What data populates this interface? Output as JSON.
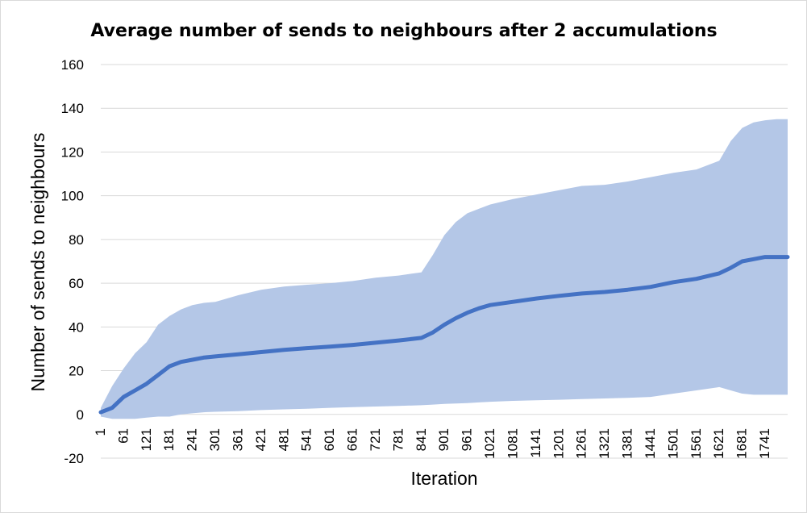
{
  "chart_data": {
    "type": "area",
    "title": "Average number of sends to neighbours after 2 accumulations",
    "xlabel": "Iteration",
    "ylabel": "Number of sends to neighbours",
    "ylim": [
      -20,
      160
    ],
    "y_ticks": [
      -20,
      0,
      20,
      40,
      60,
      80,
      100,
      120,
      140,
      160
    ],
    "x_range": [
      1,
      1800
    ],
    "x_tick_labels": [
      "1",
      "61",
      "121",
      "181",
      "241",
      "301",
      "361",
      "421",
      "481",
      "541",
      "601",
      "661",
      "721",
      "781",
      "841",
      "901",
      "961",
      "1021",
      "1081",
      "1141",
      "1201",
      "1261",
      "1321",
      "1381",
      "1441",
      "1501",
      "1561",
      "1621",
      "1681",
      "1741"
    ],
    "grid": true,
    "legend": "none",
    "colors": {
      "band": "#b4c7e7",
      "line": "#4472c4",
      "grid": "#d9d9d9"
    },
    "x": [
      1,
      31,
      61,
      91,
      121,
      151,
      181,
      211,
      241,
      271,
      301,
      361,
      421,
      481,
      541,
      601,
      661,
      721,
      781,
      841,
      871,
      901,
      931,
      961,
      991,
      1021,
      1081,
      1141,
      1201,
      1261,
      1321,
      1381,
      1441,
      1501,
      1561,
      1621,
      1651,
      1681,
      1711,
      1741,
      1771,
      1800
    ],
    "series": [
      {
        "values": [
          1,
          3,
          8,
          11,
          14,
          18,
          22,
          24,
          25,
          26,
          26.5,
          27.5,
          28.5,
          29.5,
          30.3,
          31,
          31.8,
          32.8,
          33.8,
          35,
          37.5,
          41,
          44,
          46.5,
          48.5,
          50,
          51.5,
          53,
          54.2,
          55.3,
          56,
          57,
          58.3,
          60.5,
          62,
          64.5,
          67,
          70,
          71,
          72,
          72,
          72
        ]
      },
      {
        "values": [
          3,
          13,
          21,
          28,
          33,
          41,
          45,
          48,
          50,
          51,
          51.5,
          54.5,
          57,
          58.5,
          59.3,
          60,
          61,
          62.5,
          63.5,
          65,
          73,
          82,
          88,
          92,
          94,
          96,
          98.5,
          100.5,
          102.5,
          104.5,
          105,
          106.5,
          108.5,
          110.5,
          112,
          116,
          125,
          131,
          133.5,
          134.5,
          135,
          135
        ]
      },
      {
        "values": [
          -1,
          -2,
          -2,
          -2,
          -1.5,
          -1,
          -1,
          0,
          0.5,
          1,
          1.2,
          1.5,
          2,
          2.3,
          2.6,
          3,
          3.3,
          3.6,
          3.9,
          4.2,
          4.5,
          4.8,
          5,
          5.2,
          5.5,
          5.8,
          6.2,
          6.5,
          6.7,
          7,
          7.3,
          7.6,
          8,
          9.5,
          11,
          12.5,
          11,
          9.5,
          9,
          9,
          9,
          9
        ]
      }
    ]
  }
}
